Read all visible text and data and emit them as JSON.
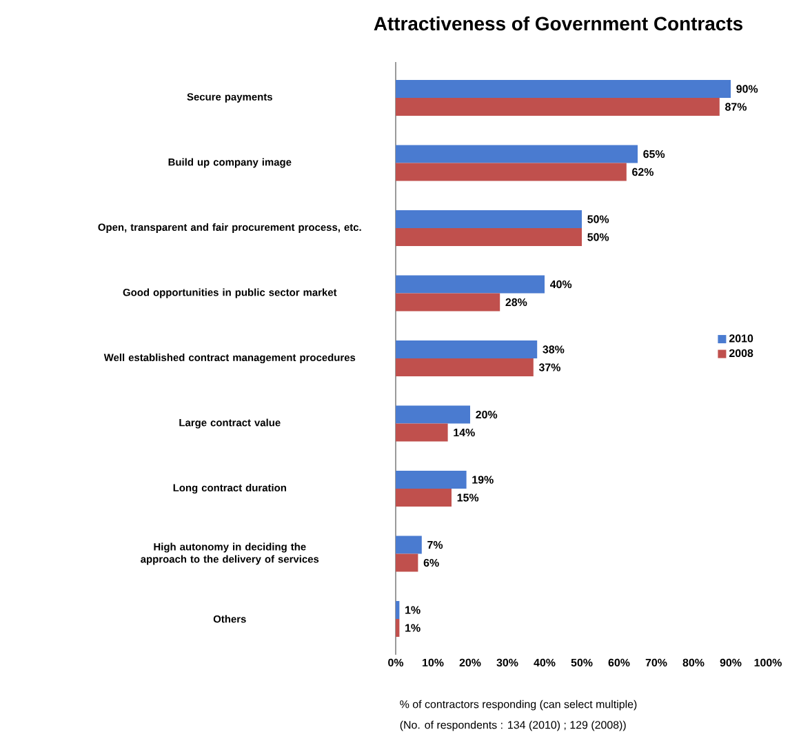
{
  "chart_data": {
    "type": "bar",
    "orientation": "horizontal",
    "title": "Attractiveness of Government Contracts",
    "categories": [
      "Secure payments",
      "Build up company image",
      "Open, transparent and fair procurement process, etc.",
      "Good opportunities in public sector market",
      "Well established contract management procedures",
      "Large contract value",
      "Long contract duration",
      "High autonomy in deciding the approach to the delivery of services",
      "Others"
    ],
    "series": [
      {
        "name": "2010",
        "color": "#4a7bd0",
        "values": [
          90,
          65,
          50,
          40,
          38,
          20,
          19,
          7,
          1
        ],
        "value_labels": [
          "90%",
          "65%",
          "50%",
          "40%",
          "38%",
          "20%",
          "19%",
          "7%",
          "1%"
        ]
      },
      {
        "name": "2008",
        "color": "#c0504d",
        "values": [
          87,
          62,
          50,
          28,
          37,
          14,
          15,
          6,
          1
        ],
        "value_labels": [
          "87%",
          "62%",
          "50%",
          "28%",
          "37%",
          "14%",
          "15%",
          "6%",
          "1%"
        ]
      }
    ],
    "xlim": [
      0,
      100
    ],
    "xticks": [
      {
        "value": 0,
        "label": "0%"
      },
      {
        "value": 10,
        "label": "10%"
      },
      {
        "value": 20,
        "label": "20%"
      },
      {
        "value": 30,
        "label": "30%"
      },
      {
        "value": 40,
        "label": "40%"
      },
      {
        "value": 50,
        "label": "50%"
      },
      {
        "value": 60,
        "label": "60%"
      },
      {
        "value": 70,
        "label": "70%"
      },
      {
        "value": 80,
        "label": "80%"
      },
      {
        "value": 90,
        "label": "90%"
      },
      {
        "value": 100,
        "label": "100%"
      }
    ],
    "xlabel": "% of contractors responding (can select multiple)",
    "annotations": [
      "(No. of respondents : 134 (2010) ; 129 (2008))"
    ],
    "legend": "right"
  }
}
